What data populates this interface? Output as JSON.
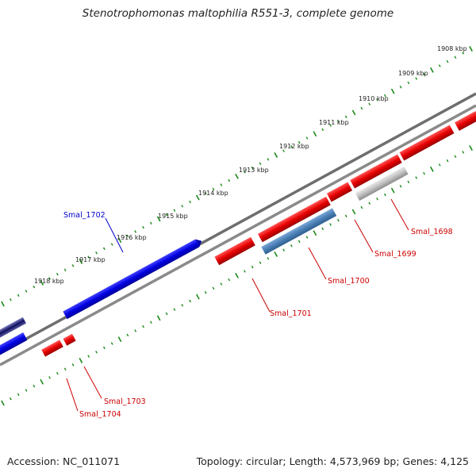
{
  "title": "Stenotrophomonas maltophilia R551-3, complete genome",
  "footer": {
    "accession": "Accession: NC_011071",
    "topology": "Topology: circular; Length: 4,573,969 bp; Genes: 4,125"
  },
  "colors": {
    "forward_gene": "#e60000",
    "reverse_gene": "#0000e0",
    "steelblue_gene": "#4a7fb5",
    "gray_gene": "#c0c0c0",
    "backbone": "#7a7a7a",
    "ticks": "#1a8a1a",
    "label_red": "#cc0000",
    "label_blue": "#0000cc"
  },
  "kbp_labels": [
    "1908 kbp",
    "1909 kbp",
    "1910 kbp",
    "1911 kbp",
    "1912 kbp",
    "1913 kbp",
    "1914 kbp",
    "1915 kbp",
    "1916 kbp",
    "1917 kbp",
    "1918 kbp"
  ],
  "gene_labels": [
    {
      "text": "Smal_1698",
      "color": "red"
    },
    {
      "text": "Smal_1699",
      "color": "red"
    },
    {
      "text": "Smal_1700",
      "color": "red"
    },
    {
      "text": "Smal_1701",
      "color": "red"
    },
    {
      "text": "Smal_1702",
      "color": "blue"
    },
    {
      "text": "Smal_1703",
      "color": "red"
    },
    {
      "text": "Smal_1704",
      "color": "red"
    }
  ]
}
